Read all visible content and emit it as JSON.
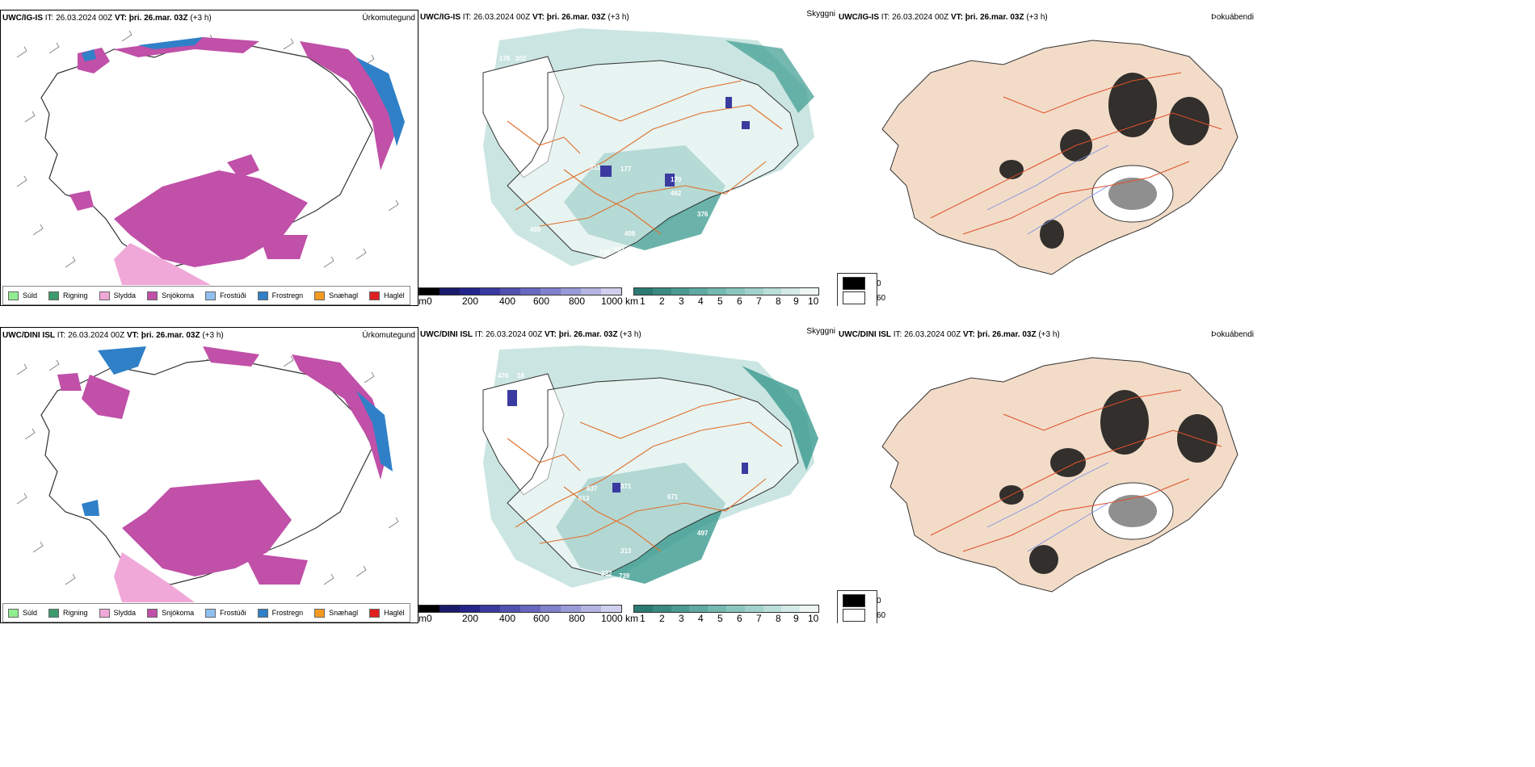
{
  "rows": [
    {
      "model": "UWC/IG-IS",
      "it_label": "IT:",
      "it_value": "26.03.2024 00Z",
      "vt_label": "VT:",
      "vt_value": "þri. 26.mar. 03Z",
      "lead": "(+3 h)",
      "panels": {
        "precip": "Úrkomutegund",
        "visibility": "Skyggni",
        "fog": "Þokuábendi"
      },
      "station_labels": [
        "176",
        "202",
        "311",
        "177",
        "170",
        "462",
        "376",
        "489",
        "408",
        "146",
        "431",
        "990"
      ]
    },
    {
      "model": "UWC/DINI ISL",
      "it_label": "IT:",
      "it_value": "26.03.2024 00Z",
      "vt_label": "VT:",
      "vt_value": "þri. 26.mar. 03Z",
      "lead": "(+3 h)",
      "panels": {
        "precip": "Úrkomutegund",
        "visibility": "Skyggni",
        "fog": "Þokuábendi"
      },
      "station_labels": [
        "476",
        "18",
        "261",
        "371",
        "637",
        "613",
        "671",
        "497",
        "313",
        "332",
        "739"
      ]
    }
  ],
  "precip_legend": [
    {
      "label": "Súld",
      "color": "#90ee90"
    },
    {
      "label": "Rigning",
      "color": "#3c9a6e"
    },
    {
      "label": "Slydda",
      "color": "#f0a8d8"
    },
    {
      "label": "Snjókoma",
      "color": "#c050a8"
    },
    {
      "label": "Frostúði",
      "color": "#90c0f0"
    },
    {
      "label": "Frostregn",
      "color": "#3080c8"
    },
    {
      "label": "Snæhagl",
      "color": "#f59a20"
    },
    {
      "label": "Haglél",
      "color": "#e02020"
    }
  ],
  "height_bar": {
    "unit": "m",
    "ticks": [
      "0",
      "200",
      "400",
      "600",
      "800",
      "1000"
    ],
    "colors": [
      "#000000",
      "#1a1a6a",
      "#24248a",
      "#3a3aa0",
      "#5050b0",
      "#6868c0",
      "#8080cc",
      "#9a9ad8",
      "#b4b4e2",
      "#d0d0ee"
    ]
  },
  "visibility_bar": {
    "unit": "km",
    "ticks": [
      "1",
      "2",
      "3",
      "4",
      "5",
      "6",
      "7",
      "8",
      "9",
      "10"
    ],
    "colors": [
      "#2a7a72",
      "#3a8a82",
      "#4a9a92",
      "#5eaaa2",
      "#74b8b0",
      "#8ac6be",
      "#a2d2cc",
      "#badeda",
      "#d4eae6",
      "#eef6f4"
    ]
  },
  "fog_legend": {
    "top": "0",
    "bottom": "60"
  },
  "colors": {
    "snow": "#c050a8",
    "sleet": "#f0a8d8",
    "freezing_rain": "#3080c8",
    "visibility": "#3a9a8e",
    "roads": "#e0702a",
    "land": "#f2dcc8",
    "fog_dark": "#111111"
  }
}
